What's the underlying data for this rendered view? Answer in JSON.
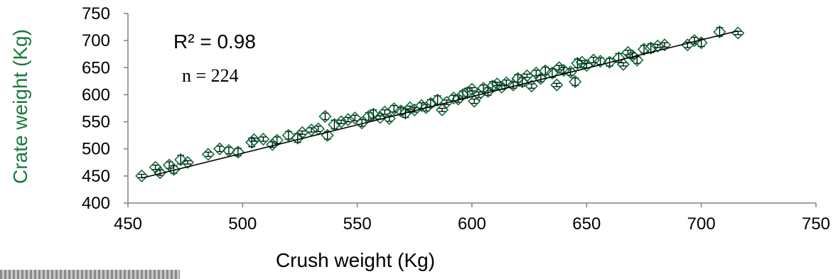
{
  "chart_data": {
    "type": "scatter",
    "title": "",
    "xlabel": "Crush weight (Kg)",
    "ylabel": "Crate weight (Kg)",
    "xlim": [
      450,
      750
    ],
    "ylim": [
      400,
      750
    ],
    "xticks": [
      450,
      500,
      550,
      600,
      650,
      700,
      750
    ],
    "yticks": [
      400,
      450,
      500,
      550,
      600,
      650,
      700,
      750
    ],
    "annotations": {
      "r2": "R²  = 0.98",
      "n": "n = 224"
    },
    "marker": "diamond-with-error-bars",
    "grid": false,
    "trendline": {
      "x": [
        456,
        716
      ],
      "y": [
        446,
        718
      ]
    },
    "series": [
      {
        "points": [
          [
            456,
            450
          ],
          [
            462,
            466
          ],
          [
            464,
            456
          ],
          [
            468,
            470
          ],
          [
            470,
            462
          ],
          [
            473,
            480
          ],
          [
            476,
            475
          ],
          [
            485,
            490
          ],
          [
            490,
            500
          ],
          [
            494,
            497
          ],
          [
            498,
            494
          ],
          [
            504,
            512
          ],
          [
            505,
            517
          ],
          [
            509,
            518
          ],
          [
            513,
            508
          ],
          [
            515,
            516
          ],
          [
            520,
            525
          ],
          [
            524,
            520
          ],
          [
            526,
            530
          ],
          [
            530,
            535
          ],
          [
            533,
            537
          ],
          [
            536,
            560
          ],
          [
            537,
            525
          ],
          [
            540,
            545
          ],
          [
            543,
            550
          ],
          [
            546,
            554
          ],
          [
            549,
            557
          ],
          [
            552,
            548
          ],
          [
            555,
            560
          ],
          [
            557,
            564
          ],
          [
            560,
            558
          ],
          [
            562,
            568
          ],
          [
            564,
            556
          ],
          [
            566,
            574
          ],
          [
            569,
            570
          ],
          [
            571,
            566
          ],
          [
            573,
            576
          ],
          [
            575,
            572
          ],
          [
            578,
            580
          ],
          [
            580,
            576
          ],
          [
            582,
            584
          ],
          [
            585,
            590
          ],
          [
            587,
            572
          ],
          [
            589,
            586
          ],
          [
            592,
            594
          ],
          [
            594,
            592
          ],
          [
            596,
            600
          ],
          [
            598,
            604
          ],
          [
            600,
            610
          ],
          [
            601,
            588
          ],
          [
            603,
            600
          ],
          [
            605,
            612
          ],
          [
            607,
            606
          ],
          [
            609,
            616
          ],
          [
            611,
            620
          ],
          [
            613,
            614
          ],
          [
            615,
            622
          ],
          [
            618,
            618
          ],
          [
            620,
            630
          ],
          [
            622,
            624
          ],
          [
            624,
            635
          ],
          [
            626,
            616
          ],
          [
            628,
            640
          ],
          [
            630,
            630
          ],
          [
            632,
            644
          ],
          [
            635,
            640
          ],
          [
            637,
            618
          ],
          [
            638,
            650
          ],
          [
            640,
            645
          ],
          [
            643,
            642
          ],
          [
            645,
            624
          ],
          [
            646,
            658
          ],
          [
            648,
            660
          ],
          [
            650,
            654
          ],
          [
            653,
            664
          ],
          [
            656,
            662
          ],
          [
            660,
            660
          ],
          [
            664,
            668
          ],
          [
            666,
            656
          ],
          [
            668,
            678
          ],
          [
            670,
            672
          ],
          [
            672,
            664
          ],
          [
            675,
            684
          ],
          [
            678,
            686
          ],
          [
            681,
            690
          ],
          [
            684,
            692
          ],
          [
            694,
            692
          ],
          [
            697,
            700
          ],
          [
            700,
            696
          ],
          [
            708,
            716
          ],
          [
            716,
            714
          ]
        ]
      }
    ],
    "colors": {
      "marker": "#006837",
      "ylabel": "#1a7a3a",
      "line": "#000000",
      "errorbar": "#000000"
    }
  }
}
